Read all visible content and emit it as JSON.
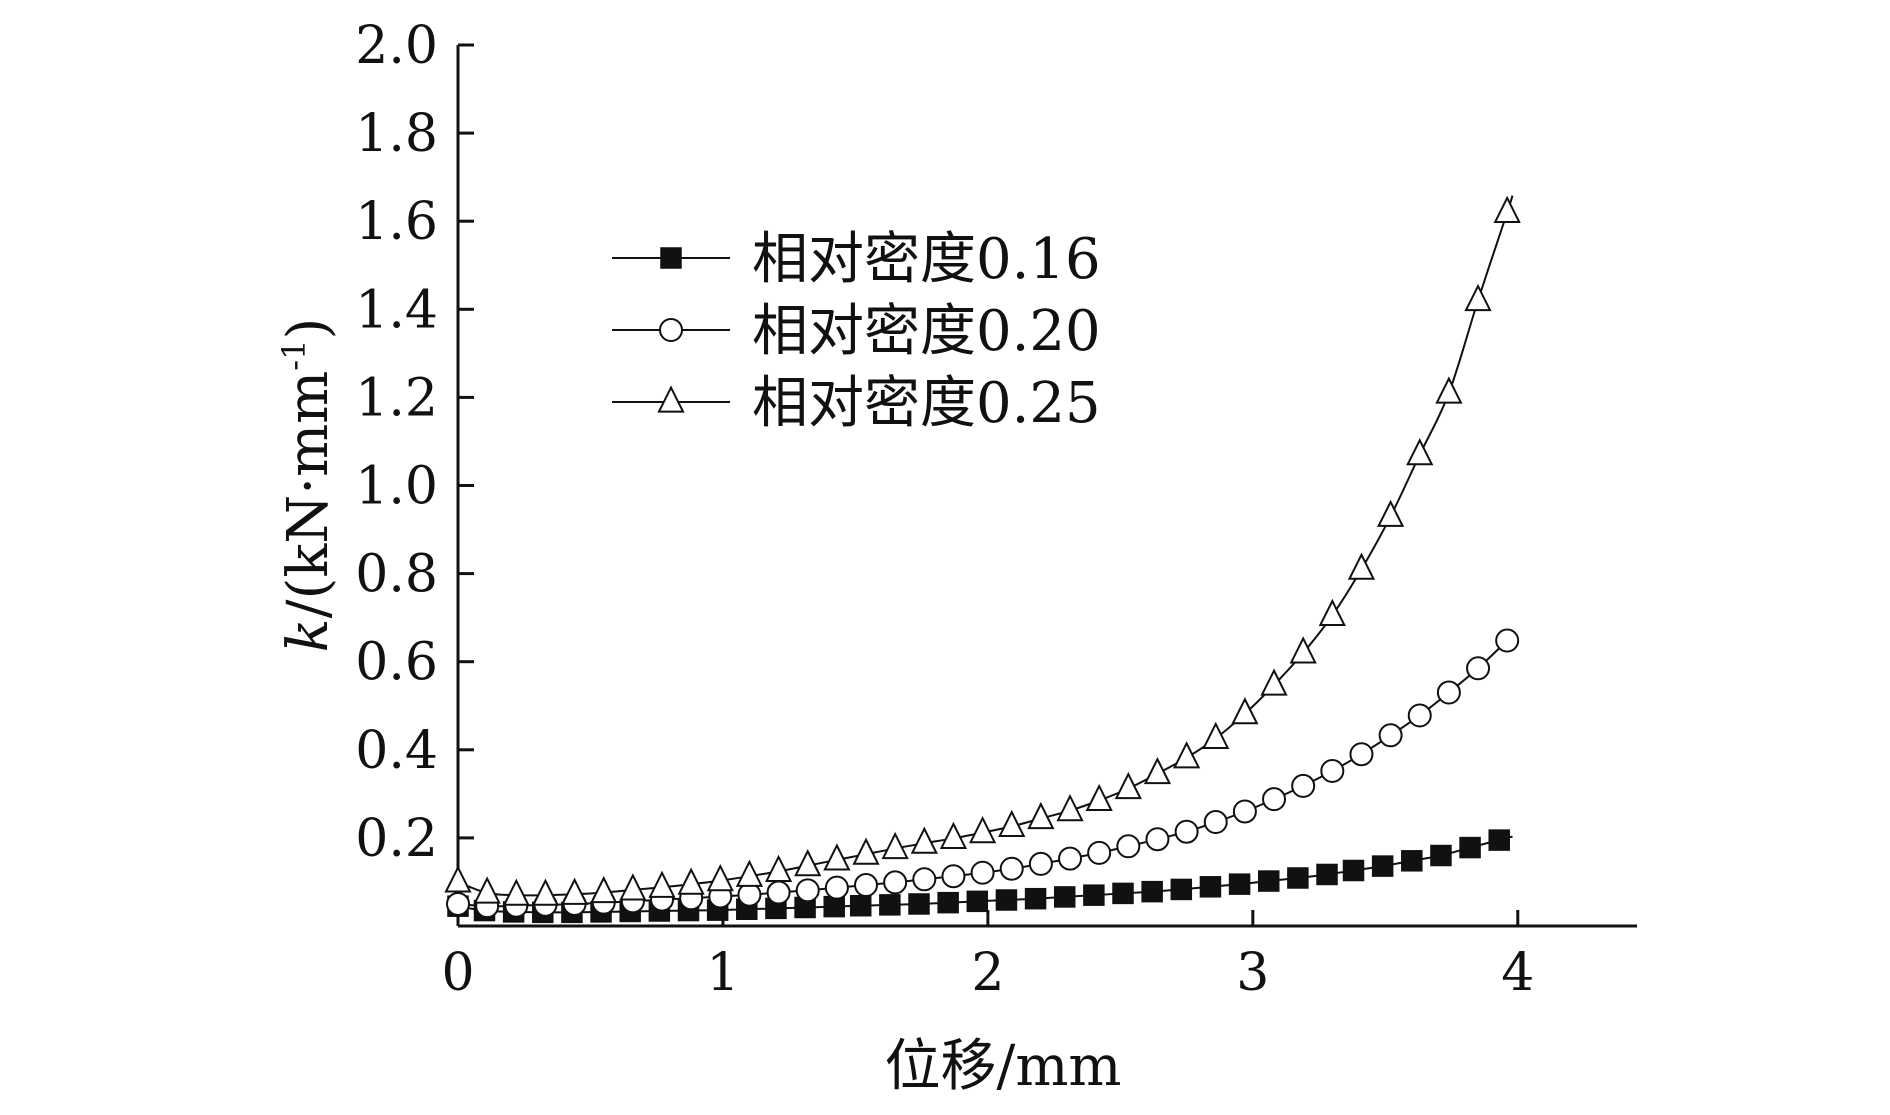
{
  "chart_data": {
    "type": "line",
    "title": "",
    "xlabel": "位移/mm",
    "ylabel_italic": "k",
    "ylabel_rest": "/(kN·mm",
    "ylabel_sup": "-1",
    "ylabel_close": ")",
    "xlim": [
      0,
      4.45
    ],
    "ylim": [
      0.0,
      2.0
    ],
    "xticks": [
      0,
      1,
      2,
      3,
      4
    ],
    "xtick_labels": [
      "0",
      "1",
      "2",
      "3",
      "4"
    ],
    "yticks": [
      0.2,
      0.4,
      0.6,
      0.8,
      1.0,
      1.2,
      1.4,
      1.6,
      1.8,
      2.0
    ],
    "ytick_labels": [
      "0.2",
      "0.4",
      "0.6",
      "0.8",
      "1.0",
      "1.2",
      "1.4",
      "1.6",
      "1.8",
      "2.0"
    ],
    "grid": false,
    "legend_position": "upper-left",
    "series": [
      {
        "name": "相对密度0.16",
        "marker": "filled-square",
        "x": [
          0.0,
          0.1,
          0.21,
          0.32,
          0.43,
          0.54,
          0.65,
          0.76,
          0.87,
          0.98,
          1.09,
          1.2,
          1.31,
          1.42,
          1.52,
          1.63,
          1.74,
          1.85,
          1.96,
          2.07,
          2.18,
          2.29,
          2.4,
          2.51,
          2.62,
          2.73,
          2.84,
          2.95,
          3.06,
          3.17,
          3.28,
          3.38,
          3.49,
          3.6,
          3.71,
          3.82,
          3.93
        ],
        "y": [
          0.045,
          0.035,
          0.032,
          0.031,
          0.031,
          0.032,
          0.033,
          0.034,
          0.035,
          0.036,
          0.038,
          0.04,
          0.042,
          0.044,
          0.046,
          0.048,
          0.05,
          0.053,
          0.056,
          0.059,
          0.062,
          0.066,
          0.07,
          0.074,
          0.078,
          0.083,
          0.089,
          0.095,
          0.102,
          0.109,
          0.117,
          0.126,
          0.136,
          0.148,
          0.16,
          0.178,
          0.195
        ]
      },
      {
        "name": "相对密度0.20",
        "marker": "open-circle",
        "x": [
          0.0,
          0.11,
          0.22,
          0.33,
          0.44,
          0.55,
          0.66,
          0.77,
          0.88,
          0.99,
          1.1,
          1.21,
          1.32,
          1.43,
          1.54,
          1.65,
          1.76,
          1.87,
          1.98,
          2.09,
          2.2,
          2.31,
          2.42,
          2.53,
          2.64,
          2.75,
          2.86,
          2.97,
          3.08,
          3.19,
          3.3,
          3.41,
          3.52,
          3.63,
          3.74,
          3.85,
          3.96
        ],
        "y": [
          0.05,
          0.045,
          0.046,
          0.048,
          0.05,
          0.053,
          0.056,
          0.06,
          0.063,
          0.067,
          0.071,
          0.076,
          0.081,
          0.087,
          0.093,
          0.099,
          0.106,
          0.113,
          0.121,
          0.13,
          0.141,
          0.153,
          0.166,
          0.181,
          0.197,
          0.214,
          0.236,
          0.26,
          0.288,
          0.318,
          0.352,
          0.39,
          0.433,
          0.478,
          0.53,
          0.585,
          0.648
        ]
      },
      {
        "name": "相对密度0.25",
        "marker": "open-triangle",
        "x": [
          0.0,
          0.11,
          0.22,
          0.33,
          0.44,
          0.55,
          0.66,
          0.77,
          0.88,
          0.99,
          1.1,
          1.21,
          1.32,
          1.43,
          1.54,
          1.65,
          1.76,
          1.87,
          1.98,
          2.09,
          2.2,
          2.31,
          2.42,
          2.53,
          2.64,
          2.75,
          2.86,
          2.97,
          3.08,
          3.19,
          3.3,
          3.41,
          3.52,
          3.63,
          3.74,
          3.85,
          3.96
        ],
        "y": [
          0.1,
          0.075,
          0.07,
          0.07,
          0.072,
          0.076,
          0.082,
          0.088,
          0.095,
          0.103,
          0.113,
          0.124,
          0.137,
          0.15,
          0.163,
          0.176,
          0.188,
          0.199,
          0.212,
          0.226,
          0.244,
          0.262,
          0.285,
          0.312,
          0.346,
          0.382,
          0.426,
          0.482,
          0.547,
          0.62,
          0.705,
          0.81,
          0.93,
          1.07,
          1.21,
          1.42,
          1.62
        ]
      }
    ]
  }
}
